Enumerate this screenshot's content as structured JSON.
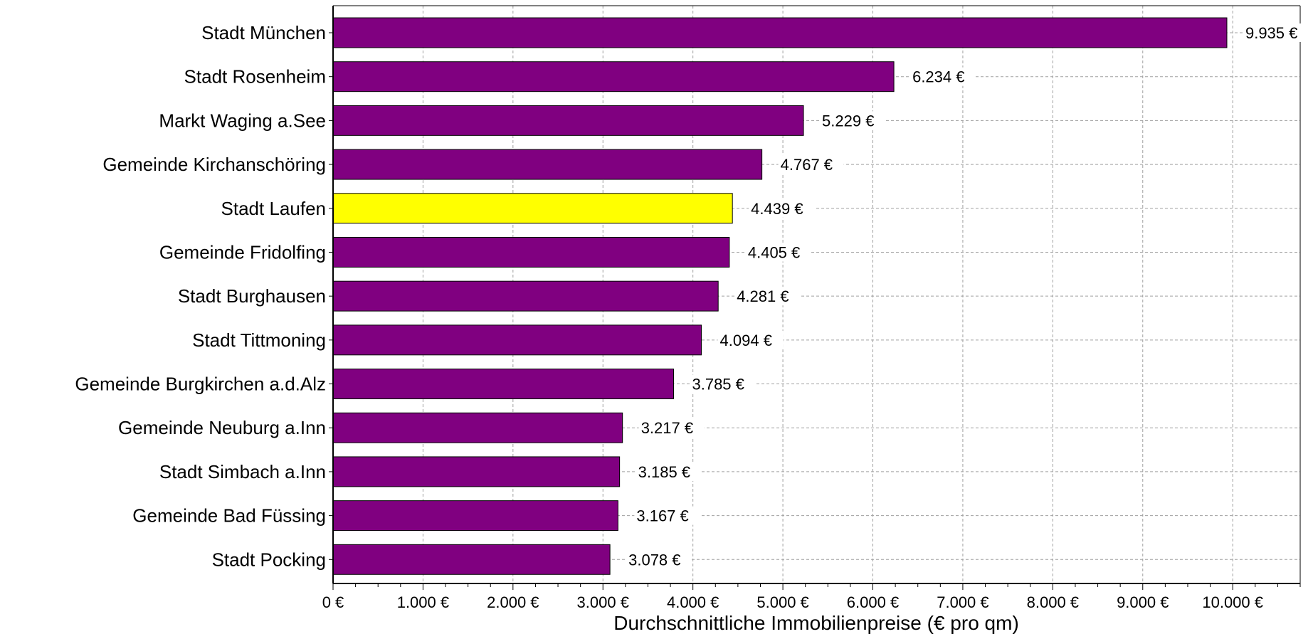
{
  "chart_data": {
    "type": "bar",
    "orientation": "horizontal",
    "categories": [
      "Stadt München",
      "Stadt Rosenheim",
      "Markt Waging a.See",
      "Gemeinde Kirchanschöring",
      "Stadt Laufen",
      "Gemeinde Fridolfing",
      "Stadt Burghausen",
      "Stadt Tittmoning",
      "Gemeinde Burgkirchen a.d.Alz",
      "Gemeinde Neuburg a.Inn",
      "Stadt Simbach a.Inn",
      "Gemeinde Bad Füssing",
      "Stadt Pocking"
    ],
    "values": [
      9935,
      6234,
      5229,
      4767,
      4439,
      4405,
      4281,
      4094,
      3785,
      3217,
      3185,
      3167,
      3078
    ],
    "value_labels": [
      "9.935 €",
      "6.234 €",
      "5.229 €",
      "4.767 €",
      "4.439 €",
      "4.405 €",
      "4.281 €",
      "4.094 €",
      "3.785 €",
      "3.217 €",
      "3.185 €",
      "3.167 €",
      "3.078 €"
    ],
    "highlight_category": "Stadt Laufen",
    "colors": {
      "bar": "#800080",
      "highlight": "#ffff00",
      "grid": "#a0a0a0",
      "axis": "#000000"
    },
    "xlim": [
      0,
      10750
    ],
    "xticks": [
      0,
      1000,
      2000,
      3000,
      4000,
      5000,
      6000,
      7000,
      8000,
      9000,
      10000
    ],
    "xtick_labels": [
      "0 €",
      "1.000 €",
      "2.000 €",
      "3.000 €",
      "4.000 €",
      "5.000 €",
      "6.000 €",
      "7.000 €",
      "8.000 €",
      "9.000 €",
      "10.000 €"
    ],
    "xlabel": "Durchschnittliche Immobilienpreise (€ pro qm)",
    "ylabel": "",
    "title": "",
    "grid": true,
    "legend": "none"
  }
}
